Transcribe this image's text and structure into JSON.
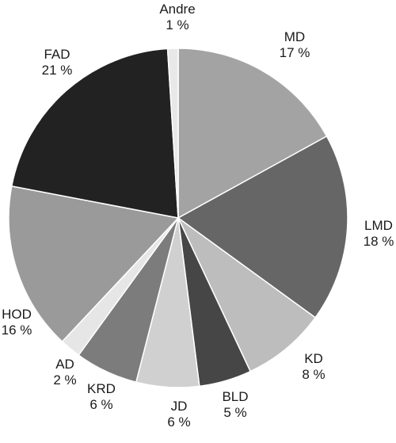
{
  "chart_data": {
    "type": "pie",
    "title": "",
    "start_angle_deg": 0,
    "direction": "clockwise",
    "slices": [
      {
        "label": "MD",
        "pct_label": "17 %",
        "value": 17,
        "color": "#a3a3a3"
      },
      {
        "label": "LMD",
        "pct_label": "18 %",
        "value": 18,
        "color": "#666666"
      },
      {
        "label": "KD",
        "pct_label": "8 %",
        "value": 8,
        "color": "#bdbdbd"
      },
      {
        "label": "BLD",
        "pct_label": "5 %",
        "value": 5,
        "color": "#464646"
      },
      {
        "label": "JD",
        "pct_label": "6 %",
        "value": 6,
        "color": "#d0d0d0"
      },
      {
        "label": "KRD",
        "pct_label": "6 %",
        "value": 6,
        "color": "#7c7c7c"
      },
      {
        "label": "AD",
        "pct_label": "2 %",
        "value": 2,
        "color": "#e6e6e6"
      },
      {
        "label": "HOD",
        "pct_label": "16 %",
        "value": 16,
        "color": "#9a9a9a"
      },
      {
        "label": "FAD",
        "pct_label": "21 %",
        "value": 21,
        "color": "#222222"
      },
      {
        "label": "Andre",
        "pct_label": "1 %",
        "value": 1,
        "color": "#e8e8e8"
      }
    ]
  }
}
